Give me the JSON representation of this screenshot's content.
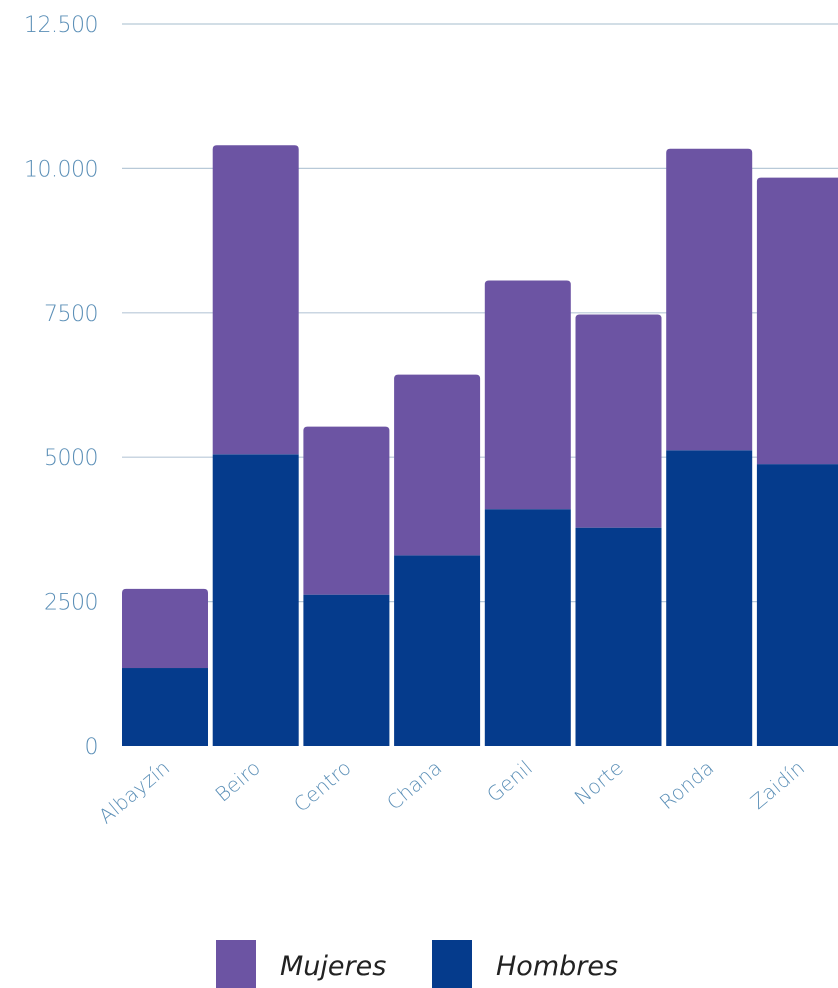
{
  "chart_data": {
    "type": "bar",
    "stacked": true,
    "categories": [
      "Albayzín",
      "Beiro",
      "Centro",
      "Chana",
      "Genil",
      "Norte",
      "Ronda",
      "Zaidín"
    ],
    "series": [
      {
        "name": "Hombres",
        "color": "#053b8c",
        "values": [
          1350,
          5050,
          2620,
          3300,
          4100,
          3780,
          5120,
          4880
        ]
      },
      {
        "name": "Mujeres",
        "color": "#6c54a3",
        "values": [
          1370,
          5350,
          2910,
          3130,
          3960,
          3690,
          5220,
          4960
        ]
      }
    ],
    "ylim": [
      0,
      12500
    ],
    "yticks": [
      {
        "value": 0,
        "label": "0"
      },
      {
        "value": 2500,
        "label": "2500"
      },
      {
        "value": 5000,
        "label": "5000"
      },
      {
        "value": 7500,
        "label": "7500"
      },
      {
        "value": 10000,
        "label": "10.000"
      },
      {
        "value": 12500,
        "label": "12.500"
      }
    ],
    "grid": true,
    "legend_position": "bottom",
    "legend": [
      {
        "label": "Mujeres",
        "color": "#6c54a3"
      },
      {
        "label": "Hombres",
        "color": "#053b8c"
      }
    ],
    "colors": {
      "axis_text": "#5b8fb7",
      "grid": "#b8c9d8"
    },
    "title": "",
    "xlabel": "",
    "ylabel": ""
  }
}
